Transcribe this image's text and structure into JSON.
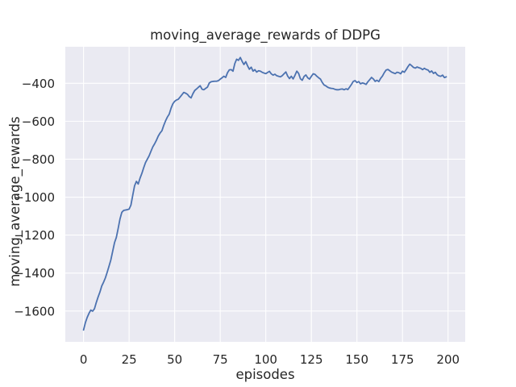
{
  "chart_data": {
    "type": "line",
    "title": "moving_average_rewards of DDPG",
    "xlabel": "episodes",
    "ylabel": "moving_average_rewards",
    "legend": "none",
    "grid": true,
    "xlim": [
      -10,
      209.4
    ],
    "ylim": [
      -1762.5,
      -207.5
    ],
    "xticks": {
      "values": [
        0,
        25,
        50,
        75,
        100,
        125,
        150,
        175,
        200
      ],
      "labels": [
        "0",
        "25",
        "50",
        "75",
        "100",
        "125",
        "150",
        "175",
        "200"
      ]
    },
    "yticks": {
      "values": [
        -400,
        -600,
        -800,
        -1000,
        -1200,
        -1400,
        -1600
      ],
      "labels": [
        "−400",
        "−600",
        "−800",
        "−1000",
        "−1200",
        "−1400",
        "−1600"
      ]
    },
    "style": {
      "plot_bg": "#EAEAF2",
      "grid_color": "#FFFFFF",
      "line_color": "#4C72B0",
      "text_color": "#262626",
      "figure_bg": "#FFFFFF"
    },
    "series": [
      {
        "name": "moving_average_rewards",
        "x_start": 0,
        "x_step": 1,
        "values": [
          -1700,
          -1662,
          -1634,
          -1612,
          -1595,
          -1601,
          -1588,
          -1555,
          -1526,
          -1500,
          -1468,
          -1448,
          -1425,
          -1395,
          -1363,
          -1330,
          -1285,
          -1240,
          -1212,
          -1165,
          -1115,
          -1080,
          -1070,
          -1068,
          -1066,
          -1063,
          -1042,
          -990,
          -940,
          -917,
          -931,
          -900,
          -875,
          -845,
          -818,
          -800,
          -782,
          -758,
          -735,
          -719,
          -700,
          -678,
          -662,
          -650,
          -622,
          -598,
          -578,
          -563,
          -532,
          -508,
          -495,
          -488,
          -484,
          -472,
          -460,
          -448,
          -452,
          -458,
          -470,
          -477,
          -455,
          -438,
          -430,
          -421,
          -413,
          -431,
          -434,
          -427,
          -420,
          -398,
          -392,
          -390,
          -389,
          -389,
          -386,
          -378,
          -371,
          -363,
          -369,
          -344,
          -329,
          -328,
          -336,
          -296,
          -273,
          -279,
          -264,
          -284,
          -301,
          -286,
          -308,
          -326,
          -315,
          -336,
          -328,
          -341,
          -334,
          -336,
          -342,
          -346,
          -349,
          -343,
          -337,
          -350,
          -357,
          -352,
          -360,
          -363,
          -366,
          -360,
          -350,
          -340,
          -362,
          -375,
          -363,
          -377,
          -358,
          -336,
          -348,
          -376,
          -384,
          -364,
          -356,
          -371,
          -378,
          -363,
          -350,
          -353,
          -363,
          -371,
          -378,
          -396,
          -409,
          -414,
          -421,
          -425,
          -427,
          -428,
          -432,
          -434,
          -434,
          -431,
          -430,
          -434,
          -429,
          -433,
          -420,
          -406,
          -390,
          -386,
          -396,
          -391,
          -403,
          -398,
          -401,
          -406,
          -392,
          -381,
          -369,
          -377,
          -390,
          -384,
          -391,
          -374,
          -362,
          -344,
          -330,
          -327,
          -334,
          -341,
          -345,
          -349,
          -342,
          -344,
          -350,
          -336,
          -342,
          -328,
          -312,
          -299,
          -307,
          -316,
          -320,
          -314,
          -318,
          -321,
          -328,
          -321,
          -327,
          -330,
          -342,
          -335,
          -348,
          -342,
          -355,
          -361,
          -363,
          -357,
          -370,
          -366
        ]
      }
    ]
  }
}
